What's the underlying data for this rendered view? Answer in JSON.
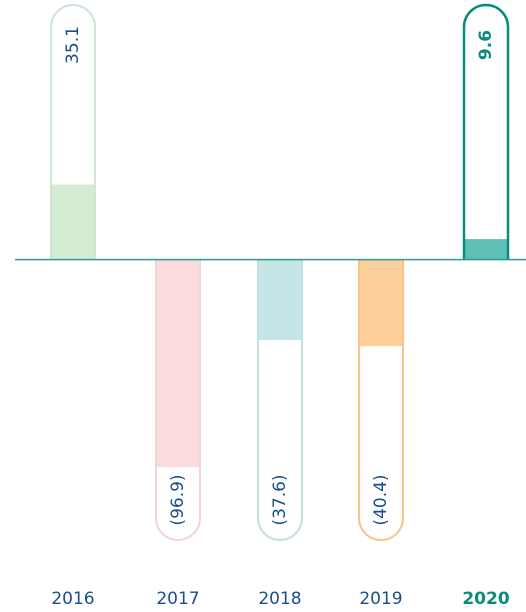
{
  "chart_data": {
    "type": "bar",
    "categories": [
      "2016",
      "2017",
      "2018",
      "2019",
      "2020"
    ],
    "values": [
      35.1,
      -96.9,
      -37.6,
      -40.4,
      9.6
    ],
    "value_labels": [
      "35.1",
      "(96.9)",
      "(37.6)",
      "(40.4)",
      "9.6"
    ],
    "colors": [
      "#d3ead3",
      "#fadcdf",
      "#c6e5e6",
      "#fdd09b",
      "#5dbfb6"
    ],
    "outline_colors": [
      "#cfe5cf",
      "#f6d3d6",
      "#c3dfe1",
      "#f8c48a",
      "#0b8b7c"
    ],
    "highlight": "2020",
    "ylim": [
      -131,
      119
    ]
  }
}
